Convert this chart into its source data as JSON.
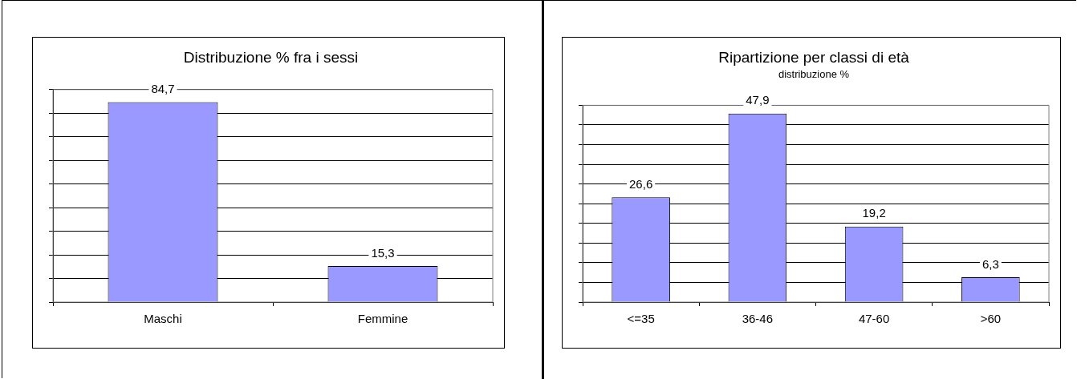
{
  "chart_data": [
    {
      "type": "bar",
      "title": "Distribuzione % fra i sessi",
      "categories": [
        "Maschi",
        "Femmine"
      ],
      "values": [
        84.7,
        15.3
      ],
      "value_labels": [
        "84,7",
        "15,3"
      ],
      "color": "#9999ff",
      "grid": "y",
      "tick_labels": "x"
    },
    {
      "type": "bar",
      "title": "Ripartizione per classi di età",
      "subtitle": "distribuzione %",
      "categories": [
        "<=35",
        "36-46",
        "47-60",
        ">60"
      ],
      "values": [
        26.6,
        47.9,
        19.2,
        6.3
      ],
      "value_labels": [
        "26,6",
        "47,9",
        "19,2",
        "6,3"
      ],
      "color": "#9999ff",
      "grid": "y",
      "tick_labels": "x"
    }
  ]
}
